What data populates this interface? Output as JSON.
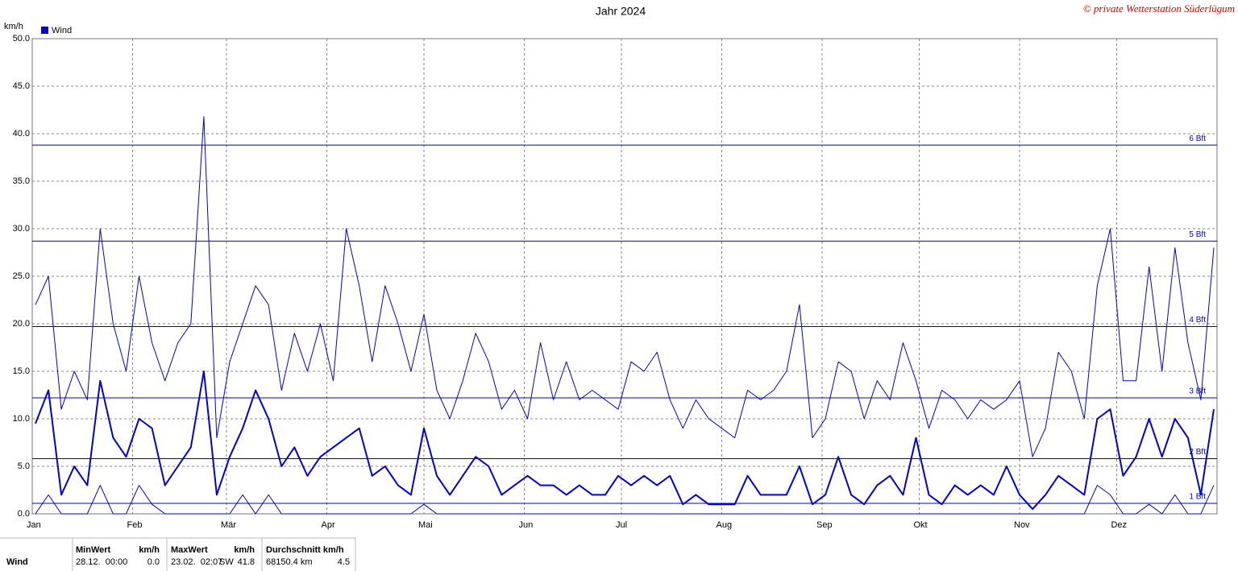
{
  "chart_data": {
    "type": "line",
    "title": "Jahr 2024",
    "copyright": "© private Wetterstation Süderlügum",
    "y_label": "km/h",
    "legend_label": "Wind",
    "grid": true,
    "xlim": [
      1,
      367
    ],
    "xticks": [
      {
        "value": 1,
        "label": "Jan"
      },
      {
        "value": 32,
        "label": "Feb"
      },
      {
        "value": 61,
        "label": "Mär"
      },
      {
        "value": 92,
        "label": "Apr"
      },
      {
        "value": 122,
        "label": "Mai"
      },
      {
        "value": 153,
        "label": "Jun"
      },
      {
        "value": 183,
        "label": "Jul"
      },
      {
        "value": 214,
        "label": "Aug"
      },
      {
        "value": 245,
        "label": "Sep"
      },
      {
        "value": 275,
        "label": "Okt"
      },
      {
        "value": 306,
        "label": "Nov"
      },
      {
        "value": 336,
        "label": "Dez"
      }
    ],
    "ylim": [
      0,
      50
    ],
    "yticks": [
      {
        "value": 0,
        "label": "0.0"
      },
      {
        "value": 5,
        "label": "5.0"
      },
      {
        "value": 10,
        "label": "10.0"
      },
      {
        "value": 15,
        "label": "15.0"
      },
      {
        "value": 20,
        "label": "20.0"
      },
      {
        "value": 25,
        "label": "25.0"
      },
      {
        "value": 30,
        "label": "30.0"
      },
      {
        "value": 35,
        "label": "35.0"
      },
      {
        "value": 40,
        "label": "40.0"
      },
      {
        "value": 45,
        "label": "45.0"
      },
      {
        "value": 50,
        "label": "50.0"
      }
    ],
    "reference_lines": [
      {
        "value": 1.1,
        "label": "1 Bft"
      },
      {
        "value": 5.8,
        "label": "2 Bft"
      },
      {
        "value": 12.2,
        "label": "3 Bft"
      },
      {
        "value": 19.7,
        "label": "4 Bft"
      },
      {
        "value": 28.7,
        "label": "5 Bft"
      },
      {
        "value": 38.8,
        "label": "6 Bft"
      }
    ],
    "x": [
      2,
      6,
      10,
      14,
      18,
      22,
      26,
      30,
      34,
      38,
      42,
      46,
      50,
      54,
      58,
      62,
      66,
      70,
      74,
      78,
      82,
      86,
      90,
      94,
      98,
      102,
      106,
      110,
      114,
      118,
      122,
      126,
      130,
      134,
      138,
      142,
      146,
      150,
      154,
      158,
      162,
      166,
      170,
      174,
      178,
      182,
      186,
      190,
      194,
      198,
      202,
      206,
      210,
      214,
      218,
      222,
      226,
      230,
      234,
      238,
      242,
      246,
      250,
      254,
      258,
      262,
      266,
      270,
      274,
      278,
      282,
      286,
      290,
      294,
      298,
      302,
      306,
      310,
      314,
      318,
      322,
      326,
      330,
      334,
      338,
      342,
      346,
      350,
      354,
      358,
      362,
      366
    ],
    "series": [
      {
        "color": "#0000dd",
        "width": 1,
        "values": [
          22,
          25,
          11,
          15,
          12,
          30,
          20,
          15,
          25,
          18,
          14,
          18,
          20,
          41.8,
          8,
          16,
          20,
          24,
          22,
          13,
          19,
          15,
          20,
          14,
          30,
          24,
          16,
          24,
          20,
          15,
          21,
          13,
          10,
          14,
          19,
          16,
          11,
          13,
          10,
          18,
          12,
          16,
          12,
          13,
          12,
          11,
          16,
          15,
          17,
          12,
          9,
          12,
          10,
          9,
          8,
          13,
          12,
          13,
          15,
          22,
          8,
          10,
          16,
          15,
          10,
          14,
          12,
          18,
          14,
          9,
          13,
          12,
          10,
          12,
          11,
          12,
          14,
          6,
          9,
          17,
          15,
          10,
          24,
          30,
          14,
          14,
          26,
          15,
          28,
          18,
          12,
          28
        ]
      },
      {
        "color": "#0000dd",
        "width": 2,
        "values": [
          9.5,
          13,
          2,
          5,
          3,
          14,
          8,
          6,
          10,
          9,
          3,
          5,
          7,
          15,
          2,
          6,
          9,
          13,
          10,
          5,
          7,
          4,
          6,
          7,
          8,
          9,
          4,
          5,
          3,
          2,
          9,
          4,
          2,
          4,
          6,
          5,
          2,
          3,
          4,
          3,
          3,
          2,
          3,
          2,
          2,
          4,
          3,
          4,
          3,
          4,
          1,
          2,
          1,
          1,
          1,
          4,
          2,
          2,
          2,
          5,
          1,
          2,
          6,
          2,
          1,
          3,
          4,
          2,
          8,
          2,
          1,
          3,
          2,
          3,
          2,
          5,
          2,
          0.5,
          2,
          4,
          3,
          2,
          10,
          11,
          4,
          6,
          10,
          6,
          10,
          8,
          2,
          11
        ]
      },
      {
        "color": "#0000dd",
        "width": 1,
        "values": [
          0,
          2,
          0,
          0,
          0,
          3,
          0,
          0,
          3,
          1,
          0,
          0,
          0,
          0,
          0,
          0,
          2,
          0,
          2,
          0,
          0,
          0,
          0,
          0,
          0,
          0,
          0,
          0,
          0,
          0,
          1,
          0,
          0,
          0,
          0,
          0,
          0,
          0,
          0,
          0,
          0,
          0,
          0,
          0,
          0,
          0,
          0,
          0,
          0,
          0,
          0,
          0,
          0,
          0,
          0,
          0,
          0,
          0,
          0,
          0,
          0,
          0,
          0,
          0,
          0,
          0,
          0,
          0,
          0,
          0,
          0,
          0,
          0,
          0,
          0,
          0,
          0,
          0,
          0,
          0,
          0,
          0,
          3,
          2,
          0,
          0,
          1,
          0,
          2,
          0,
          0,
          3
        ]
      }
    ]
  },
  "table": {
    "row_label": "Wind",
    "headers": [
      "MinWert",
      "km/h",
      "MaxWert",
      "km/h",
      "Durchschnitt km/h"
    ],
    "min_time": "28.12.  00:00",
    "min_value": "0.0",
    "max_time": "23.02.  02:07",
    "max_dir": "SW",
    "max_value": "41.8",
    "sum": "68150.4 km",
    "avg": "4.5"
  }
}
